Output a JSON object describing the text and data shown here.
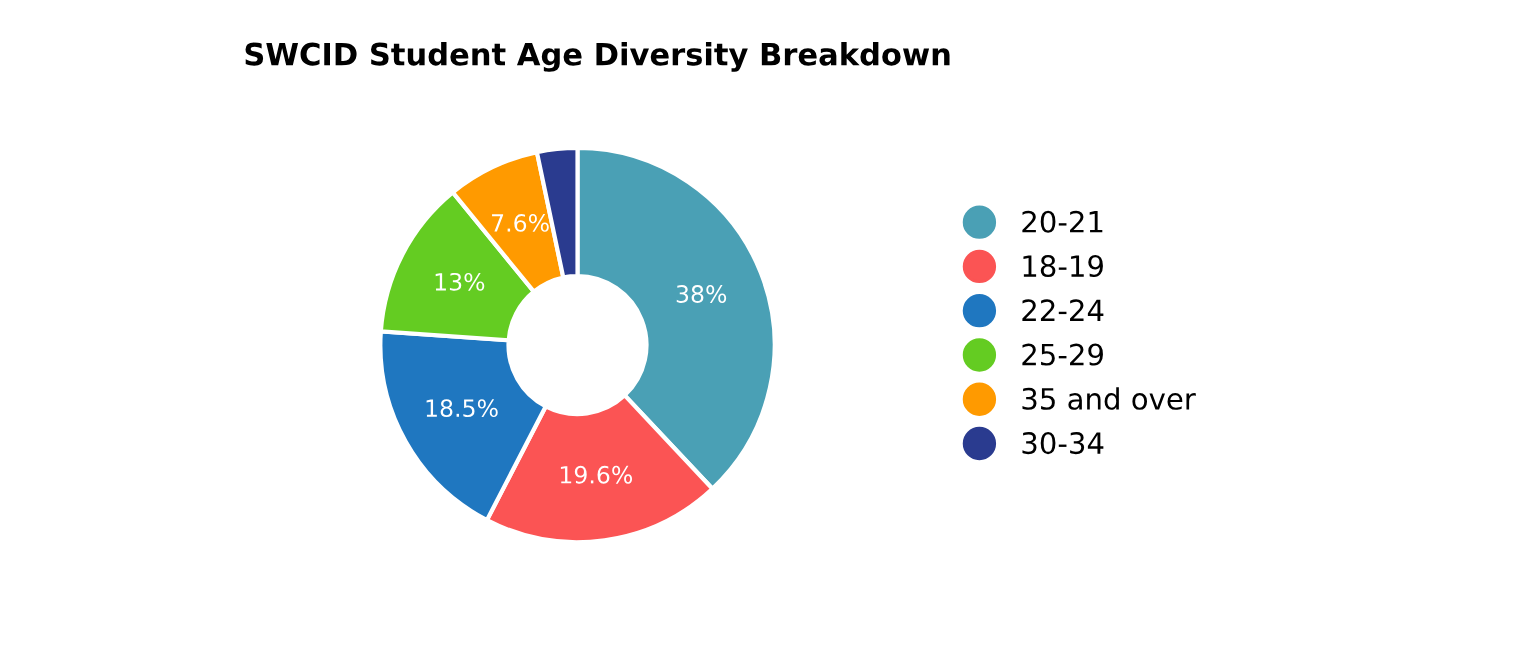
{
  "chart_data": {
    "type": "donut",
    "title": "SWCID Student Age Diversity Breakdown",
    "categories": [
      "20-21",
      "18-19",
      "22-24",
      "25-29",
      "35 and over",
      "30-34"
    ],
    "values": [
      38,
      19.6,
      18.5,
      13,
      7.6,
      3.3
    ],
    "value_labels": [
      "38%",
      "19.6%",
      "18.5%",
      "13%",
      "7.6%",
      null
    ],
    "colors": [
      "#4aa0b5",
      "#fb5454",
      "#1f77c0",
      "#64cc22",
      "#ff9a00",
      "#2a3b8f"
    ],
    "legend": "right"
  }
}
